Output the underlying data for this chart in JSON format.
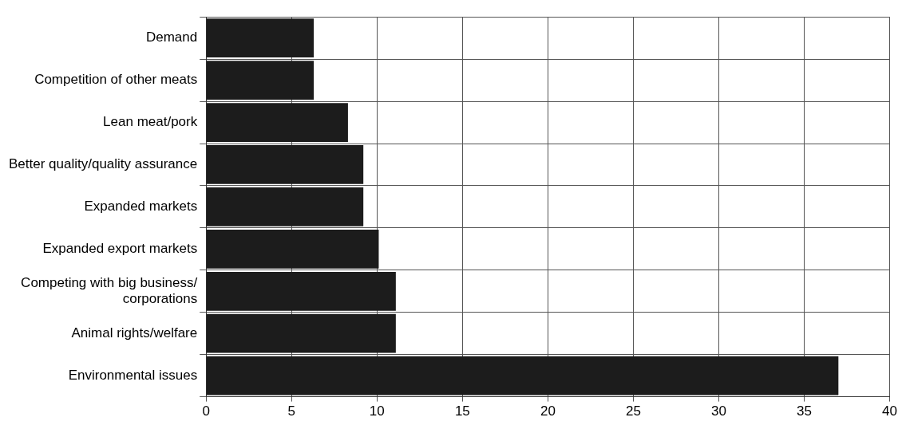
{
  "chart_data": {
    "type": "bar",
    "orientation": "horizontal",
    "categories": [
      "Demand",
      "Competition of other meats",
      "Lean meat/pork",
      "Better quality/quality assurance",
      "Expanded markets",
      "Expanded export markets",
      "Competing with big business/\ncorporations",
      "Animal rights/welfare",
      "Environmental issues"
    ],
    "values": [
      6.3,
      6.3,
      8.3,
      9.2,
      9.2,
      10.1,
      11.1,
      11.1,
      37.0
    ],
    "color": "#1c1c1c",
    "xlim": [
      0,
      40
    ],
    "xticks": [
      0,
      5,
      10,
      15,
      20,
      25,
      30,
      35,
      40
    ],
    "grid": true,
    "legend": false
  }
}
